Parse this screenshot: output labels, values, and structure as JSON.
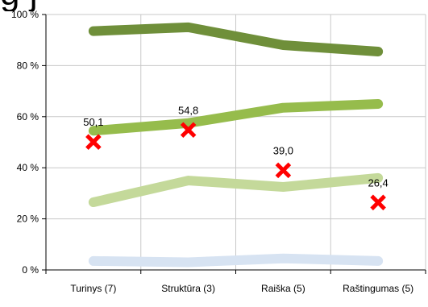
{
  "chart_data": {
    "type": "line",
    "title": "",
    "title_fragment": "g                                         j",
    "categories": [
      "Turinys (7)",
      "Struktūra (3)",
      "Raiška (5)",
      "Raštingumas (5)"
    ],
    "ylim": [
      0,
      100
    ],
    "yticks": [
      0,
      20,
      40,
      60,
      80,
      100
    ],
    "ytick_labels": [
      "0 %",
      "20 %",
      "40 %",
      "60 %",
      "80 %",
      "100 %"
    ],
    "grid": true,
    "legend": "none",
    "series": [
      {
        "values": [
          93.5,
          95,
          88,
          85.5
        ],
        "color": "#6f8f3a"
      },
      {
        "values": [
          54.5,
          57.5,
          63.5,
          65
        ],
        "color": "#96bc4c"
      },
      {
        "values": [
          26.5,
          35,
          32.5,
          36
        ],
        "color": "#c4d99a"
      },
      {
        "values": [
          3.5,
          3,
          4.5,
          3.5
        ],
        "color": "#d7e3f2"
      }
    ],
    "markers": {
      "type": "x",
      "color": "#ff0000",
      "values": [
        50.1,
        54.8,
        39.0,
        26.4
      ],
      "labels": [
        "50,1",
        "54,8",
        "39,0",
        "26,4"
      ]
    }
  }
}
